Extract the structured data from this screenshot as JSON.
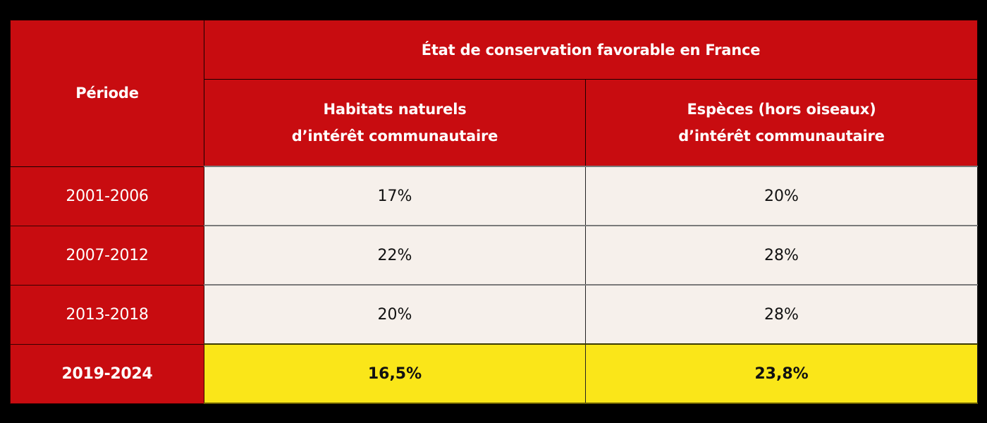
{
  "table": {
    "header": {
      "period_label": "Période",
      "group_label": "État de conservation favorable en France",
      "columns": [
        {
          "line1": "Habitats naturels",
          "line2": "d’intérêt communautaire"
        },
        {
          "line1": "Espèces (hors oiseaux)",
          "line2": "d’intérêt communautaire"
        }
      ]
    },
    "rows": [
      {
        "period": "2001-2006",
        "habitats": "17%",
        "especes": "20%",
        "highlight": false
      },
      {
        "period": "2007-2012",
        "habitats": "22%",
        "especes": "28%",
        "highlight": false
      },
      {
        "period": "2013-2018",
        "habitats": "20%",
        "especes": "28%",
        "highlight": false
      },
      {
        "period": "2019-2024",
        "habitats": "16,5%",
        "especes": "23,8%",
        "highlight": true
      }
    ]
  },
  "colors": {
    "background": "#000000",
    "header_red": "#C80C10",
    "cell_bg": "#F6F0EB",
    "highlight_yellow": "#FAE619",
    "header_text": "#FFFFFF",
    "cell_text": "#111111"
  }
}
